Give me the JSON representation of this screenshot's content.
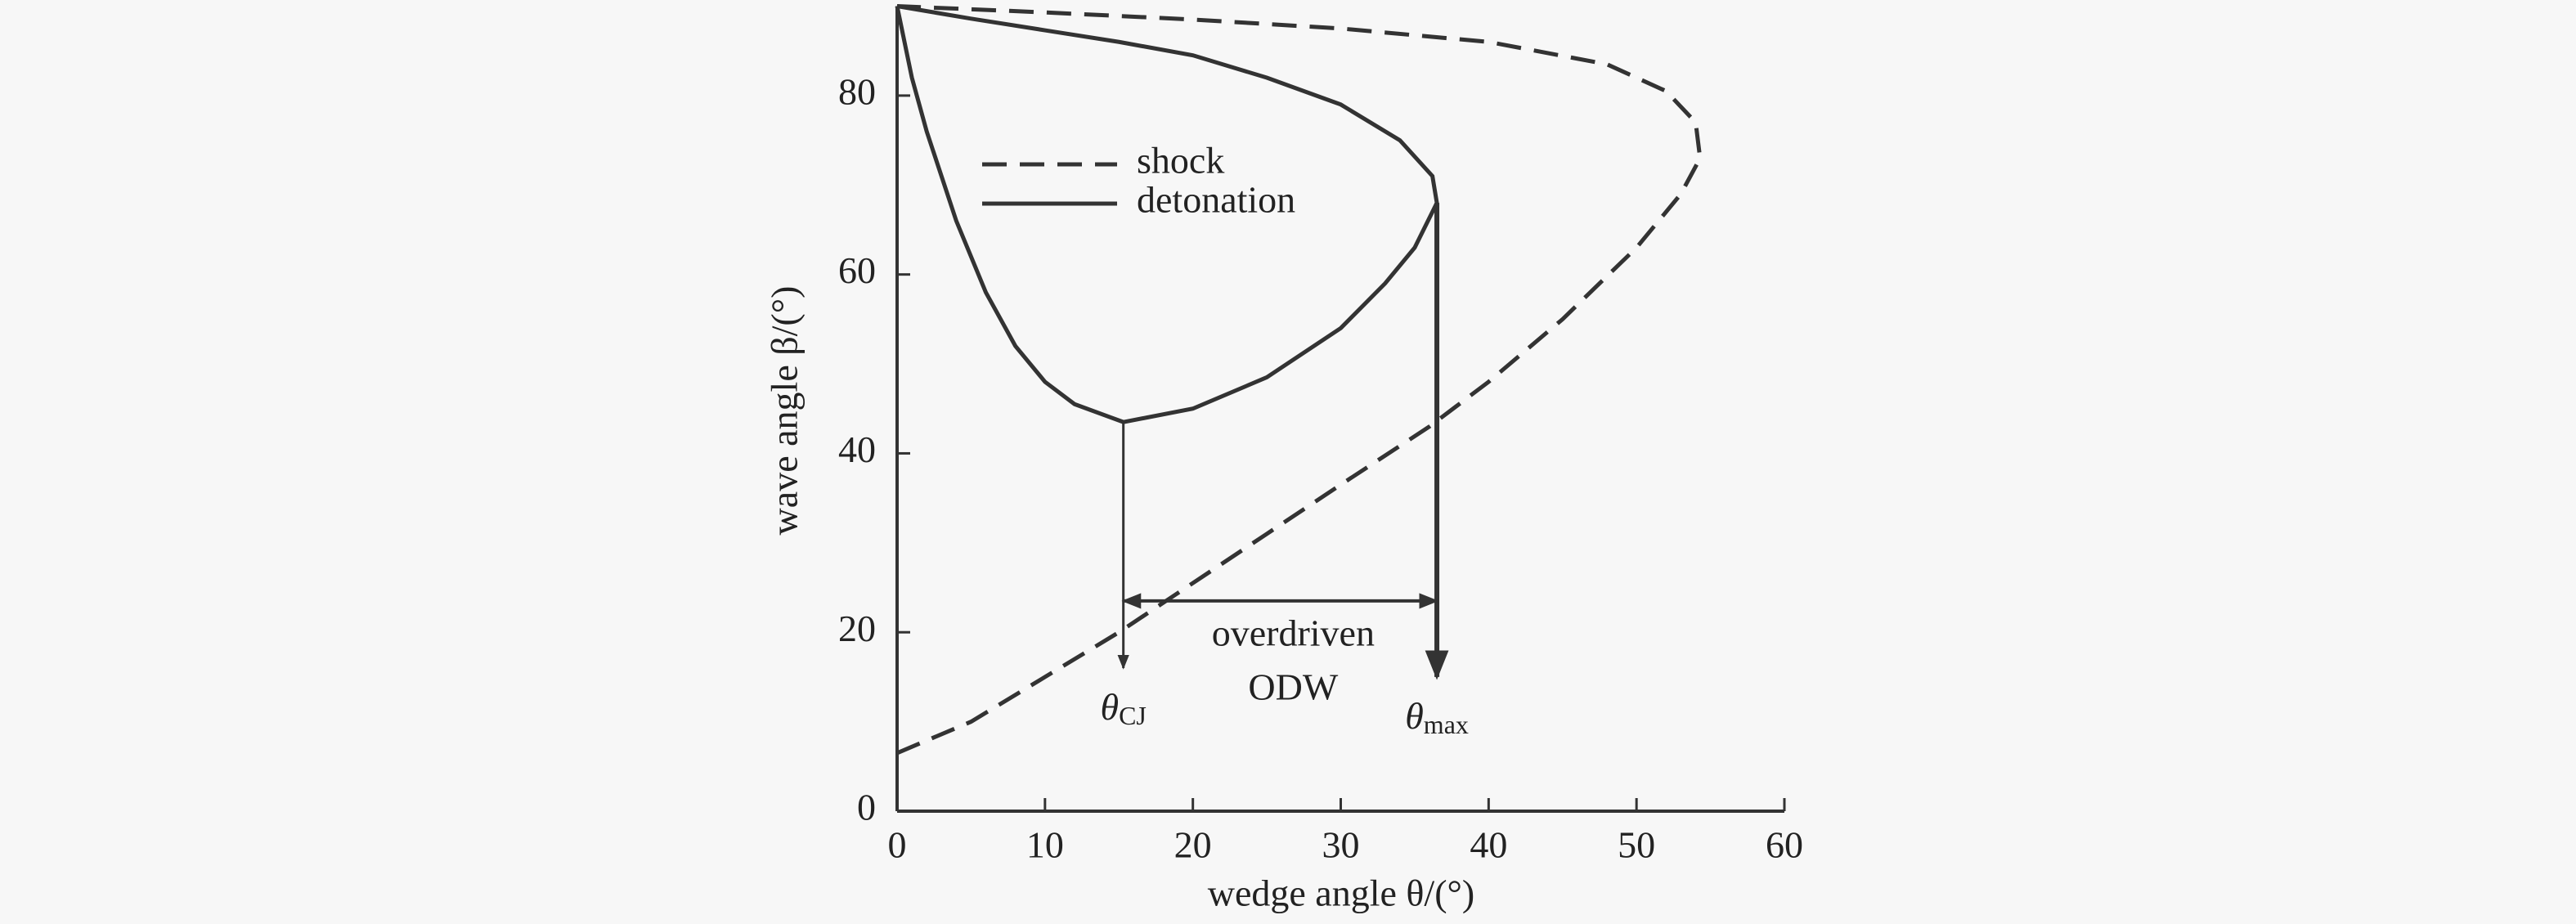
{
  "chart_data": {
    "type": "line",
    "xlabel": "wedge angle θ/(°)",
    "ylabel": "wave angle β/(°)",
    "xlim": [
      0,
      60
    ],
    "xticks": [
      0,
      10,
      20,
      30,
      40,
      50,
      60
    ],
    "ylim": [
      0,
      90
    ],
    "yticks": [
      0,
      20,
      40,
      60,
      80
    ],
    "legend": "upper left",
    "series": [
      {
        "name": "shock",
        "style": "dashed",
        "color": "#333333",
        "x": [
          0,
          5,
          10,
          15,
          20,
          25,
          30,
          36,
          40,
          45,
          50,
          53,
          54.3,
          54,
          52,
          48,
          40,
          30,
          20,
          10,
          0
        ],
        "values": [
          6.5,
          10,
          15,
          20,
          25.5,
          31,
          36.5,
          43,
          48,
          55,
          63,
          69,
          73,
          77,
          80.5,
          83.5,
          86,
          87.5,
          88.5,
          89.3,
          90
        ]
      },
      {
        "name": "detonation",
        "style": "solid",
        "color": "#333333",
        "x": [
          0,
          1,
          2,
          4,
          6,
          8,
          10,
          12,
          15.3,
          20,
          25,
          30,
          33,
          35,
          36.5,
          36.2,
          34,
          30,
          25,
          20,
          15,
          10,
          5,
          0
        ],
        "values": [
          90,
          82,
          76,
          66,
          58,
          52,
          48,
          45.5,
          43.5,
          45,
          48.5,
          54,
          59,
          63,
          68,
          71,
          75,
          79,
          82,
          84.5,
          86,
          87.3,
          88.6,
          90
        ]
      }
    ],
    "markers": [
      {
        "symbol": "θ",
        "subscript": "CJ",
        "x": 15.3,
        "y_from": 43.5,
        "y_to": 16
      },
      {
        "symbol": "θ",
        "subscript": "max",
        "x": 36.5,
        "y_from": 68,
        "y_to": 15
      }
    ],
    "range": {
      "text": [
        "overdriven",
        "ODW"
      ],
      "from": 15.3,
      "to": 36.5,
      "y": 23.5
    }
  }
}
